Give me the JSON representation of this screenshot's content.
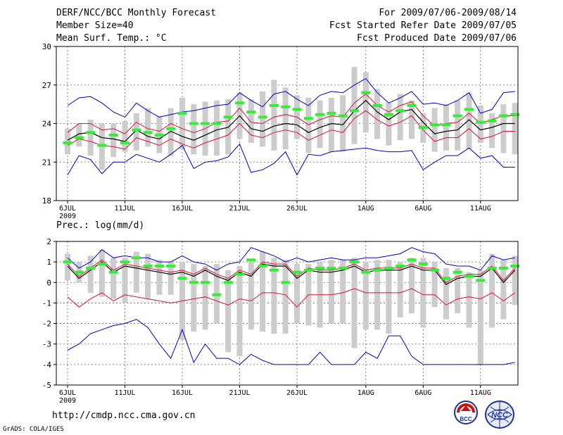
{
  "header": {
    "title": "DERF/NCC/BCC Monthly Forecast",
    "member_size": "Member Size=40",
    "variable": "Mean Surf. Temp.: °C",
    "period": "For 2009/07/06-2009/08/14",
    "start_date": "Fcst Started Refer Date 2009/07/05",
    "produced_date": "Fcst Produced Date 2009/07/06"
  },
  "footer": {
    "url": "http://cmdp.ncc.cma.gov.cn",
    "credit": "GrADS: COLA/IGES",
    "logo1_text": "BCC",
    "logo2_text": "NCC"
  },
  "colors": {
    "box": "#cccccc",
    "median": "#33ee33",
    "mean": "#000000",
    "spread": "#dd1133",
    "extreme": "#0000cc"
  },
  "chart_data": [
    {
      "type": "box",
      "title": "Mean Surf. Temp.: °C",
      "ylim": [
        18,
        30
      ],
      "yticks": [
        18,
        21,
        24,
        27,
        30
      ],
      "x_tick_labels": [
        "6JUL",
        "11JUL",
        "16JUL",
        "21JUL",
        "26JUL",
        "1AUG",
        "6AUG",
        "11AUG"
      ],
      "x_tick_index": [
        0,
        5,
        10,
        15,
        20,
        26,
        31,
        36
      ],
      "year_label": "2009",
      "box_low": [
        21.6,
        22.2,
        21.5,
        20.4,
        21.4,
        21.8,
        21.9,
        22.2,
        21.7,
        21.5,
        22.0,
        21.6,
        21.5,
        21.5,
        21.6,
        22.8,
        22.5,
        22.2,
        21.9,
        22.0,
        22.8,
        21.7,
        22.1,
        21.8,
        21.8,
        22.4,
        23.3,
        22.8,
        22.3,
        22.7,
        22.8,
        22.5,
        21.8,
        21.9,
        21.9,
        22.0,
        22.5,
        22.1,
        21.7,
        21.6
      ],
      "box_high": [
        23.6,
        24.0,
        24.3,
        24.0,
        24.0,
        24.2,
        24.8,
        25.2,
        24.6,
        25.2,
        26.0,
        25.5,
        25.7,
        25.8,
        25.9,
        26.4,
        25.9,
        26.5,
        27.4,
        26.8,
        26.2,
        26.0,
        25.8,
        26.0,
        26.2,
        28.4,
        28.0,
        26.7,
        25.6,
        26.3,
        25.8,
        24.8,
        25.2,
        25.5,
        25.8,
        26.4,
        25.4,
        24.8,
        25.5,
        25.6
      ],
      "median": [
        22.5,
        22.9,
        23.3,
        22.3,
        23.1,
        22.5,
        23.5,
        23.3,
        23.1,
        23.6,
        24.8,
        24.0,
        24.0,
        24.0,
        24.5,
        25.6,
        24.9,
        24.5,
        25.4,
        25.3,
        25.1,
        24.4,
        24.7,
        24.8,
        24.6,
        25.0,
        26.4,
        25.4,
        24.7,
        25.0,
        25.4,
        23.7,
        23.9,
        23.9,
        24.6,
        25.1,
        24.1,
        24.2,
        24.6,
        24.7
      ],
      "mean": [
        22.7,
        23.2,
        23.3,
        22.9,
        22.8,
        22.6,
        23.5,
        23.0,
        22.8,
        23.4,
        23.0,
        22.7,
        23.1,
        23.5,
        23.7,
        24.6,
        23.6,
        23.4,
        23.8,
        24.0,
        23.9,
        23.3,
        23.7,
        24.0,
        23.9,
        25.0,
        25.8,
        24.9,
        24.3,
        24.9,
        25.1,
        24.1,
        23.2,
        23.4,
        23.5,
        24.3,
        23.5,
        23.7,
        24.0,
        24.0
      ],
      "spread_high": [
        23.3,
        24.0,
        24.0,
        23.5,
        23.6,
        23.2,
        24.1,
        23.6,
        23.4,
        24.0,
        23.6,
        23.3,
        23.6,
        24.1,
        24.2,
        25.2,
        24.1,
        24.0,
        24.5,
        24.7,
        24.5,
        23.9,
        24.3,
        24.6,
        24.5,
        25.6,
        26.3,
        25.4,
        24.9,
        25.4,
        25.7,
        24.6,
        23.8,
        24.0,
        24.1,
        24.8,
        24.0,
        24.3,
        24.6,
        24.6
      ],
      "spread_low": [
        22.3,
        22.8,
        22.6,
        22.3,
        22.2,
        22.0,
        22.9,
        22.6,
        22.3,
        22.8,
        22.4,
        22.1,
        22.5,
        22.8,
        23.1,
        24.0,
        23.1,
        22.9,
        23.3,
        23.5,
        23.3,
        22.7,
        23.1,
        23.5,
        23.3,
        24.4,
        25.0,
        24.3,
        23.8,
        24.1,
        24.6,
        23.5,
        22.6,
        22.9,
        22.9,
        23.6,
        22.8,
        23.0,
        23.4,
        23.4
      ],
      "max": [
        25.4,
        26.0,
        26.1,
        25.6,
        24.9,
        24.5,
        25.6,
        25.0,
        24.5,
        24.7,
        24.9,
        25.0,
        25.2,
        25.4,
        25.5,
        26.4,
        25.8,
        25.3,
        26.3,
        26.5,
        25.9,
        25.4,
        26.2,
        26.5,
        26.4,
        27.0,
        27.5,
        26.4,
        25.6,
        26.0,
        26.5,
        25.5,
        25.6,
        25.4,
        25.8,
        26.4,
        24.8,
        25.1,
        26.4,
        26.5
      ],
      "min": [
        20.0,
        21.5,
        21.2,
        20.1,
        21.0,
        21.0,
        21.6,
        21.3,
        21.0,
        21.6,
        22.3,
        20.5,
        21.0,
        21.1,
        21.4,
        22.4,
        20.2,
        20.4,
        20.9,
        21.8,
        20.0,
        21.6,
        21.5,
        21.8,
        21.9,
        22.0,
        22.1,
        21.9,
        21.8,
        21.8,
        21.9,
        20.4,
        21.0,
        21.5,
        21.5,
        22.1,
        21.3,
        21.5,
        20.6,
        20.6
      ]
    },
    {
      "type": "box",
      "title": "Prec.: log(mm/d)",
      "ylim": [
        -5,
        2
      ],
      "yticks": [
        -5,
        -4,
        -3,
        -2,
        -1,
        0,
        1,
        2
      ],
      "x_tick_labels": [
        "6JUL",
        "11JUL",
        "16JUL",
        "21JUL",
        "26JUL",
        "1AUG",
        "6AUG",
        "11AUG"
      ],
      "x_tick_index": [
        0,
        5,
        10,
        15,
        20,
        26,
        31,
        36
      ],
      "year_label": "2009",
      "box_low": [
        0.1,
        0.0,
        -0.5,
        -0.7,
        -0.8,
        -1.0,
        -0.5,
        -0.8,
        -0.6,
        -0.6,
        -2.8,
        -2.4,
        -2.3,
        -2.0,
        -3.4,
        -3.6,
        -2.3,
        -2.4,
        -2.5,
        -2.5,
        -2.0,
        -2.1,
        -2.2,
        -2.0,
        -2.0,
        -3.2,
        -2.3,
        -2.3,
        -2.5,
        -1.7,
        -1.5,
        -2.2,
        -1.2,
        -1.8,
        -1.5,
        -2.2,
        -4.0,
        -2.2,
        -1.8,
        -1.1
      ],
      "box_high": [
        1.4,
        1.0,
        1.3,
        1.6,
        1.2,
        1.2,
        1.5,
        1.4,
        1.1,
        1.0,
        1.0,
        0.9,
        0.8,
        0.9,
        0.6,
        0.8,
        1.0,
        1.5,
        1.2,
        1.1,
        0.9,
        0.9,
        1.0,
        1.1,
        1.1,
        1.2,
        1.0,
        1.1,
        1.1,
        1.0,
        1.2,
        1.2,
        1.0,
        0.7,
        0.7,
        0.5,
        0.6,
        1.4,
        1.1,
        1.3
      ],
      "median": [
        1.0,
        0.5,
        0.7,
        0.9,
        0.5,
        1.0,
        1.2,
        0.8,
        0.8,
        0.8,
        0.2,
        0.0,
        0.0,
        -0.6,
        0.0,
        0.4,
        1.1,
        0.8,
        0.6,
        0.0,
        0.5,
        0.6,
        0.7,
        0.7,
        0.7,
        1.0,
        0.5,
        0.6,
        0.7,
        0.8,
        1.1,
        0.9,
        0.6,
        0.2,
        0.5,
        0.3,
        0.1,
        0.7,
        0.7,
        0.8
      ],
      "mean": [
        0.8,
        0.2,
        0.6,
        1.0,
        0.5,
        0.8,
        0.7,
        0.6,
        0.5,
        0.4,
        0.5,
        0.3,
        0.6,
        0.3,
        0.1,
        0.5,
        0.3,
        0.9,
        0.8,
        0.8,
        0.2,
        0.6,
        0.5,
        0.5,
        0.6,
        0.8,
        0.5,
        0.6,
        0.6,
        0.6,
        0.8,
        0.6,
        0.6,
        -0.1,
        0.2,
        0.3,
        0.3,
        0.7,
        0.0,
        0.6
      ],
      "spread_high": [
        0.9,
        0.3,
        0.7,
        1.1,
        0.6,
        0.9,
        0.8,
        0.7,
        0.6,
        0.5,
        0.6,
        0.4,
        0.7,
        0.4,
        0.2,
        0.6,
        0.4,
        1.0,
        0.9,
        0.9,
        0.3,
        0.7,
        0.6,
        0.6,
        0.7,
        0.9,
        0.6,
        0.7,
        0.7,
        0.7,
        0.9,
        0.7,
        0.7,
        0.0,
        0.3,
        0.4,
        0.4,
        0.8,
        0.1,
        0.7
      ],
      "spread_low": [
        -0.7,
        -1.2,
        -0.8,
        -0.5,
        -0.9,
        -0.6,
        -0.7,
        -0.8,
        -0.9,
        -1.0,
        -0.9,
        -0.8,
        -0.7,
        -0.9,
        -1.1,
        -0.8,
        -0.9,
        -0.5,
        -0.5,
        -0.6,
        -1.2,
        -0.6,
        -0.6,
        -0.6,
        -0.5,
        -0.3,
        -0.5,
        -0.5,
        -0.5,
        -0.5,
        -0.3,
        -0.6,
        -0.6,
        -1.1,
        -0.8,
        -0.7,
        -0.8,
        -0.5,
        -0.9,
        -0.5
      ],
      "max": [
        1.2,
        0.7,
        1.0,
        1.6,
        1.2,
        1.3,
        1.2,
        1.2,
        1.0,
        1.0,
        1.3,
        1.0,
        0.9,
        0.6,
        0.9,
        1.0,
        1.7,
        1.5,
        1.3,
        1.0,
        1.2,
        1.0,
        1.1,
        1.2,
        1.1,
        1.1,
        1.2,
        1.2,
        1.3,
        1.4,
        1.7,
        1.5,
        1.4,
        0.9,
        0.8,
        0.8,
        0.6,
        1.3,
        1.1,
        1.2
      ],
      "min": [
        -3.3,
        -3.0,
        -2.5,
        -2.3,
        -2.1,
        -2.0,
        -1.8,
        -2.2,
        -3.0,
        -3.7,
        -2.3,
        -3.9,
        -3.0,
        -3.7,
        -3.7,
        -4.0,
        -3.5,
        -3.8,
        -4.0,
        -4.0,
        -4.0,
        -4.0,
        -3.4,
        -4.0,
        -4.0,
        -4.0,
        -3.4,
        -3.7,
        -2.6,
        -2.6,
        -3.6,
        -4.0,
        -4.0,
        -4.0,
        -4.0,
        -4.0,
        -4.0,
        -4.0,
        -4.0,
        -3.9
      ]
    }
  ]
}
